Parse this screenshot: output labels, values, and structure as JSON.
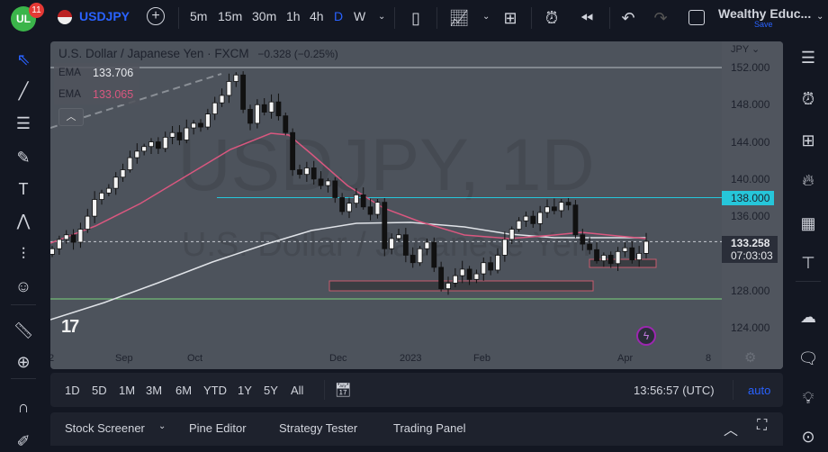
{
  "header": {
    "notif_count": "11",
    "symbol": "USDJPY",
    "timeframes": [
      "5m",
      "15m",
      "30m",
      "1h",
      "4h",
      "D",
      "W"
    ],
    "active_timeframe": "D",
    "account": "Wealthy Educ...",
    "save": "Save"
  },
  "legend": {
    "title": "U.S. Dollar / Japanese Yen · FXCM",
    "change": "−0.328 (−0.25%)",
    "ema1_label": "EMA",
    "ema1_value": "133.706",
    "ema2_label": "EMA",
    "ema2_value": "133.065"
  },
  "watermark": {
    "big": "USDJPY, 1D",
    "small": "U.S. Dollar / Japanese Yen"
  },
  "colors": {
    "accent": "#2962ff",
    "cyan": "#26c6da",
    "ema_pink": "#e0457b",
    "green": "#7bd67b"
  },
  "chart_data": {
    "type": "candlestick",
    "currency": "JPY",
    "price_labels": [
      "152.000",
      "148.000",
      "144.000",
      "140.000",
      "136.000",
      "128.000",
      "124.000"
    ],
    "price_values": [
      152,
      148,
      144,
      140,
      136,
      128,
      124
    ],
    "date_labels": [
      "2",
      "Sep",
      "Oct",
      "Dec",
      "2023",
      "Feb",
      "Apr",
      "8"
    ],
    "closes": [
      132.5,
      133.5,
      134,
      133.2,
      134.6,
      136,
      137.8,
      138.5,
      139,
      140.2,
      141,
      142.3,
      143,
      143.5,
      144,
      143.3,
      144.5,
      145,
      144.2,
      145.5,
      146,
      145.6,
      147,
      148.2,
      149,
      150.5,
      151.2,
      147.5,
      146,
      148,
      147.2,
      148.3,
      146.8,
      145,
      141,
      140.5,
      141.2,
      140,
      139.3,
      139.8,
      138,
      136.5,
      137.4,
      138.3,
      137,
      136.2,
      137.5,
      132.5,
      133.6,
      134,
      131.8,
      131,
      132.5,
      133.2,
      130.5,
      128.2,
      128.8,
      129.6,
      130.3,
      129.2,
      129.8,
      131,
      130.2,
      131.8,
      133.5,
      134.6,
      135.5,
      136,
      135.2,
      136.4,
      137,
      136.6,
      137.5,
      137.2,
      134,
      133,
      132.4,
      131.2,
      131.8,
      130.9,
      132.2,
      132.6,
      131.3,
      132,
      133.3
    ],
    "levels": {
      "top": 152.0,
      "resistance": 138.0,
      "last": 133.258,
      "support": 127.1
    },
    "last_price": "133.258",
    "countdown": "07:03:03",
    "resistance_label": "138.000"
  },
  "range_buttons": [
    "1D",
    "5D",
    "1M",
    "3M",
    "6M",
    "YTD",
    "1Y",
    "5Y",
    "All"
  ],
  "clock": "13:56:57 (UTC)",
  "auto": "auto",
  "bottom_tabs": [
    "Stock Screener",
    "Pine Editor",
    "Strategy Tester",
    "Trading Panel"
  ]
}
